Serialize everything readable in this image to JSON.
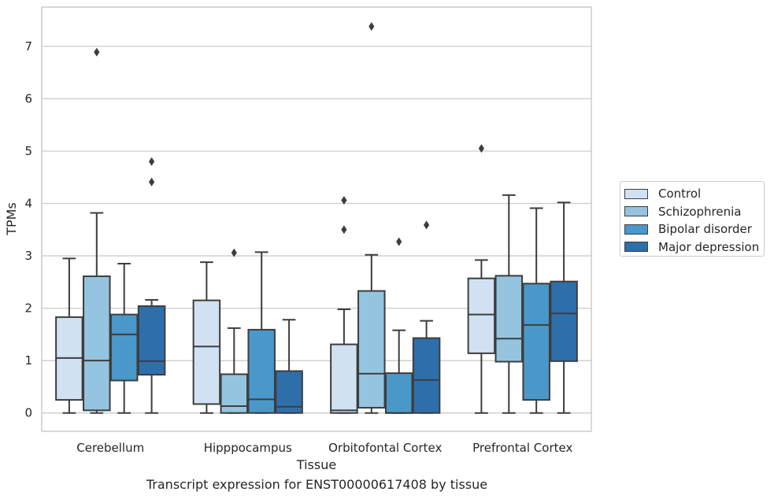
{
  "chart_data": {
    "type": "box",
    "xlabel": "Tissue",
    "ylabel": "TPMs",
    "caption": "Transcript expression for ENST00000617408 by tissue",
    "ylim": [
      -0.35,
      7.75
    ],
    "yticks": [
      0,
      1,
      2,
      3,
      4,
      5,
      6,
      7
    ],
    "categories": [
      "Cerebellum",
      "Hipppocampus",
      "Orbitofontal Cortex",
      "Prefrontal Cortex"
    ],
    "grid": true,
    "legend_position": "outside-right",
    "series": [
      {
        "name": "Control",
        "color": "#d0e1f2",
        "boxes": [
          {
            "whislo": 0.0,
            "q1": 0.25,
            "med": 1.05,
            "q3": 1.83,
            "whishi": 2.95,
            "fliers": []
          },
          {
            "whislo": 0.0,
            "q1": 0.17,
            "med": 1.27,
            "q3": 2.15,
            "whishi": 2.88,
            "fliers": []
          },
          {
            "whislo": 0.0,
            "q1": 0.0,
            "med": 0.05,
            "q3": 1.31,
            "whishi": 1.98,
            "fliers": [
              3.5,
              4.06
            ]
          },
          {
            "whislo": 0.0,
            "q1": 1.14,
            "med": 1.88,
            "q3": 2.57,
            "whishi": 2.92,
            "fliers": [
              5.05
            ]
          }
        ]
      },
      {
        "name": "Schizophrenia",
        "color": "#94c4df",
        "boxes": [
          {
            "whislo": 0.0,
            "q1": 0.05,
            "med": 1.0,
            "q3": 2.61,
            "whishi": 3.82,
            "fliers": [
              6.89
            ]
          },
          {
            "whislo": 0.0,
            "q1": 0.0,
            "med": 0.13,
            "q3": 0.74,
            "whishi": 1.62,
            "fliers": [
              3.06
            ]
          },
          {
            "whislo": 0.0,
            "q1": 0.1,
            "med": 0.75,
            "q3": 2.33,
            "whishi": 3.02,
            "fliers": [
              7.38
            ]
          },
          {
            "whislo": 0.0,
            "q1": 0.98,
            "med": 1.42,
            "q3": 2.62,
            "whishi": 4.16,
            "fliers": []
          }
        ]
      },
      {
        "name": "Bipolar disorder",
        "color": "#4a98c9",
        "boxes": [
          {
            "whislo": 0.0,
            "q1": 0.62,
            "med": 1.5,
            "q3": 1.88,
            "whishi": 2.85,
            "fliers": []
          },
          {
            "whislo": 0.0,
            "q1": 0.0,
            "med": 0.26,
            "q3": 1.59,
            "whishi": 3.07,
            "fliers": []
          },
          {
            "whislo": 0.0,
            "q1": 0.0,
            "med": 0.0,
            "q3": 0.76,
            "whishi": 1.58,
            "fliers": [
              3.27
            ]
          },
          {
            "whislo": 0.0,
            "q1": 0.25,
            "med": 1.68,
            "q3": 2.47,
            "whishi": 3.91,
            "fliers": []
          }
        ]
      },
      {
        "name": "Major depression",
        "color": "#2e6fab",
        "boxes": [
          {
            "whislo": 0.0,
            "q1": 0.73,
            "med": 0.99,
            "q3": 2.04,
            "whishi": 2.16,
            "fliers": [
              4.41,
              4.8
            ]
          },
          {
            "whislo": 0.0,
            "q1": 0.0,
            "med": 0.12,
            "q3": 0.8,
            "whishi": 1.78,
            "fliers": []
          },
          {
            "whislo": 0.0,
            "q1": 0.0,
            "med": 0.63,
            "q3": 1.43,
            "whishi": 1.76,
            "fliers": [
              3.59
            ]
          },
          {
            "whislo": 0.0,
            "q1": 0.99,
            "med": 1.9,
            "q3": 2.51,
            "whishi": 4.02,
            "fliers": []
          }
        ]
      }
    ]
  },
  "colors": {
    "grid": "#cccccc",
    "axes_edge": "#cccccc",
    "box_line": "#3d3d3d",
    "text": "#262626"
  }
}
